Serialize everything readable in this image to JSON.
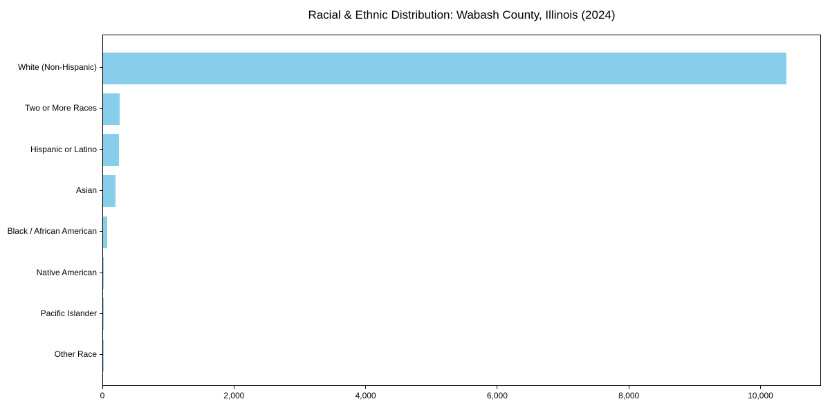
{
  "figure": {
    "background": "#ffffff",
    "plot_border_color": "#000000",
    "text_color": "#000000"
  },
  "chart_data": {
    "type": "bar",
    "orientation": "horizontal",
    "title": "Racial & Ethnic Distribution: Wabash County, Illinois (2024)",
    "xlabel": "",
    "ylabel": "",
    "categories": [
      "White (Non-Hispanic)",
      "Two or More Races",
      "Hispanic or Latino",
      "Asian",
      "Black / African American",
      "Native American",
      "Pacific Islander",
      "Other Race"
    ],
    "values": [
      10400,
      250,
      240,
      190,
      65,
      5,
      1,
      2
    ],
    "xlim": [
      0,
      10920
    ],
    "x_ticks": [
      0,
      2000,
      4000,
      6000,
      8000,
      10000
    ],
    "x_tick_labels": [
      "0",
      "2,000",
      "4,000",
      "6,000",
      "8,000",
      "10,000"
    ],
    "bar_color": "#87CEEB",
    "grid": false,
    "legend": null
  }
}
